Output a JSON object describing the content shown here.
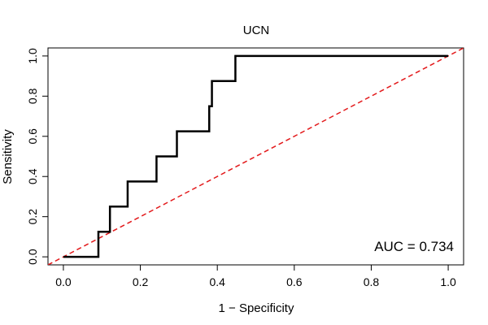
{
  "chart_data": {
    "type": "line",
    "title": "UCN",
    "xlabel": "1 − Specificity",
    "ylabel": "Sensitivity",
    "xlim": [
      -0.04,
      1.04
    ],
    "ylim": [
      -0.04,
      1.04
    ],
    "xticks": [
      0.0,
      0.2,
      0.4,
      0.6,
      0.8,
      1.0
    ],
    "xtick_labels": [
      "0.0",
      "0.2",
      "0.4",
      "0.6",
      "0.8",
      "1.0"
    ],
    "yticks": [
      0.0,
      0.2,
      0.4,
      0.6,
      0.8,
      1.0
    ],
    "ytick_labels": [
      "0.0",
      "0.2",
      "0.4",
      "0.6",
      "0.8",
      "1.0"
    ],
    "grid": false,
    "series": [
      {
        "color": "#000000",
        "style": "solid",
        "x": [
          0.0,
          0.091,
          0.091,
          0.121,
          0.121,
          0.167,
          0.167,
          0.242,
          0.242,
          0.295,
          0.295,
          0.379,
          0.379,
          0.386,
          0.386,
          0.447,
          0.447,
          1.0
        ],
        "y": [
          0.0,
          0.0,
          0.125,
          0.125,
          0.25,
          0.25,
          0.375,
          0.375,
          0.5,
          0.5,
          0.625,
          0.625,
          0.75,
          0.75,
          0.875,
          0.875,
          1.0,
          1.0
        ]
      },
      {
        "color": "#e31a1c",
        "style": "dashed",
        "x": [
          -0.04,
          1.04
        ],
        "y": [
          -0.04,
          1.04
        ]
      }
    ],
    "annotation": "AUC = 0.734"
  }
}
